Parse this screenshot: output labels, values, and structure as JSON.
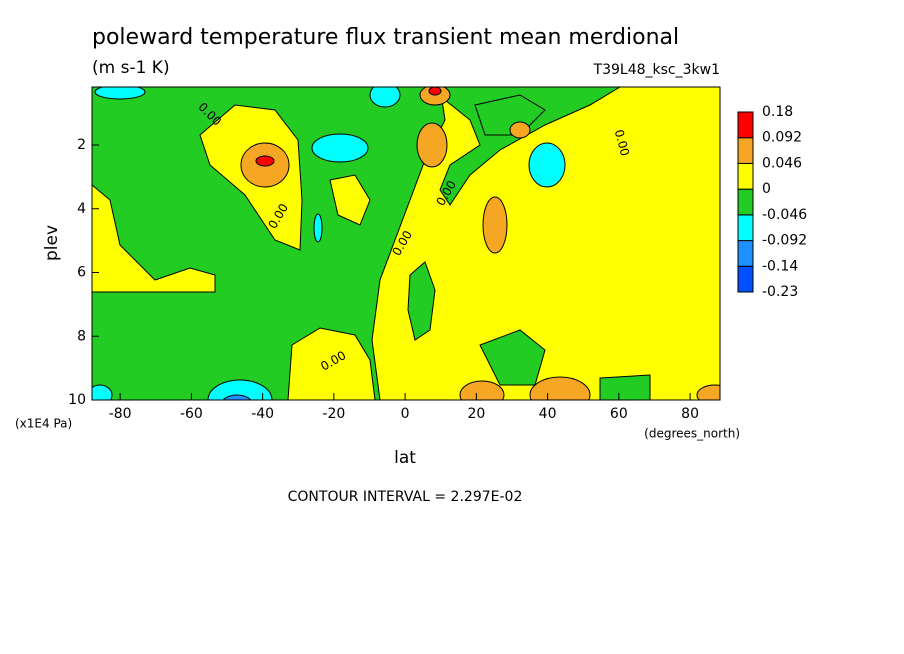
{
  "chart_data": {
    "type": "contour",
    "title": "poleward temperature flux transient mean merdional",
    "units": "(m s-1 K)",
    "dataset": "T39L48_ksc_3kw1",
    "x_label": "lat",
    "x_units": "(degrees_north)",
    "y_label": "plev",
    "y_units": "(x1E4 Pa)",
    "note": "CONTOUR INTERVAL = 2.297E-02",
    "contour_label": "0.00",
    "xlim": [
      -87.9,
      88.4
    ],
    "xticks": [
      -80,
      -60,
      -40,
      -20,
      0,
      20,
      40,
      60,
      80
    ],
    "ylim": [
      10,
      0.18
    ],
    "yticks": [
      2,
      4,
      6,
      8,
      10
    ],
    "levels": [
      -0.23,
      -0.14,
      -0.092,
      -0.046,
      0,
      0.046,
      0.092,
      0.18
    ],
    "colors": [
      "#0050ff",
      "#1e90ff",
      "#00ffff",
      "#22cc22",
      "#ffff00",
      "#f5a623",
      "#ff0000"
    ]
  }
}
